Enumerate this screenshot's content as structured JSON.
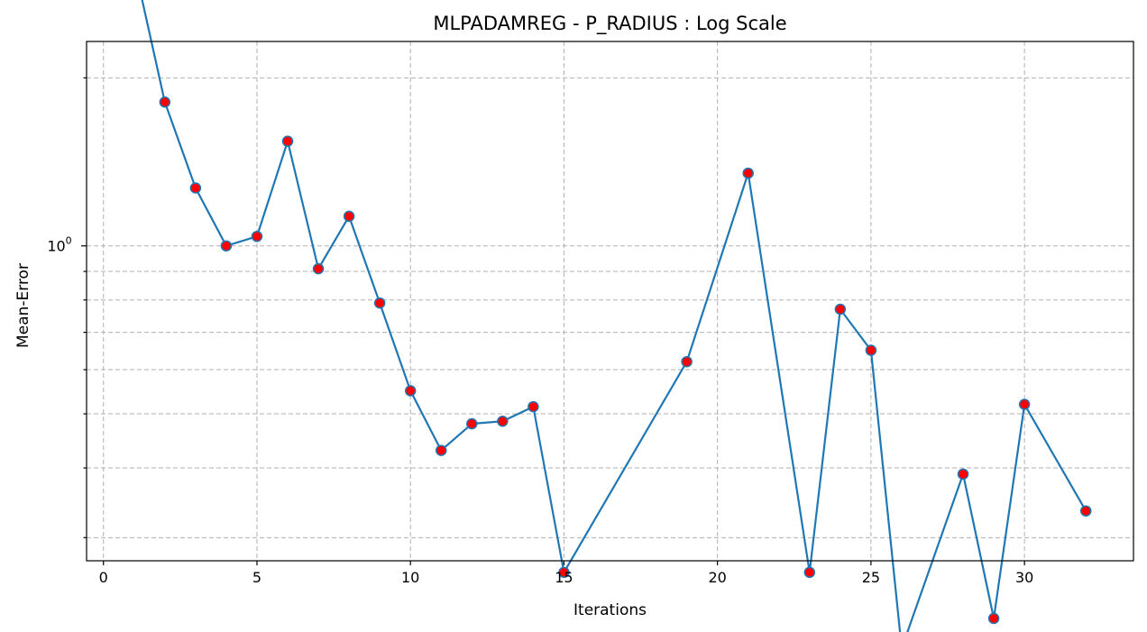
{
  "chart_data": {
    "type": "line",
    "title": "MLPADAMREG - P_RADIUS : Log Scale",
    "xlabel": "Iterations",
    "ylabel": "Mean-Error",
    "xscale": "linear",
    "yscale": "log",
    "xlim": [
      -0.55,
      33.55
    ],
    "ylim": [
      0.2727,
      2.3245
    ],
    "xticks": [
      0,
      5,
      10,
      15,
      20,
      25,
      30
    ],
    "yticks_major": [
      1.0
    ],
    "ytick_major_labels": [
      "10",
      "0"
    ],
    "yticks_minor": [
      0.3,
      0.4,
      0.5,
      0.6,
      0.7,
      0.8,
      0.9,
      2.0
    ],
    "grid": true,
    "legend": "none",
    "colors": {
      "line": "#1f77b4",
      "marker_fill": "#ff0000",
      "marker_edge": "#1f77b4"
    },
    "series": [
      {
        "x": [
          1,
          2,
          3,
          4,
          5,
          6,
          7,
          8,
          9,
          10,
          11,
          12,
          13,
          14,
          15,
          19,
          21,
          23,
          24,
          25,
          26,
          28,
          29,
          30,
          32
        ],
        "y": [
          3.2,
          1.81,
          1.27,
          1.0,
          1.04,
          1.54,
          0.91,
          1.13,
          0.79,
          0.55,
          0.43,
          0.48,
          0.485,
          0.515,
          0.26,
          0.62,
          1.35,
          0.26,
          0.77,
          0.65,
          0.19,
          0.39,
          0.215,
          0.52,
          0.335
        ]
      }
    ]
  }
}
